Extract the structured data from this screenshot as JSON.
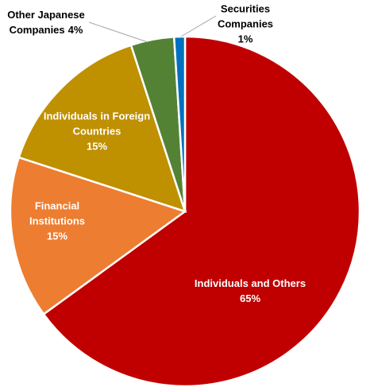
{
  "chart_data": {
    "type": "pie",
    "categories": [
      "Individuals and Others",
      "Financial Institutions",
      "Individuals in Foreign Countries",
      "Other Japanese Companies",
      "Securities Companies"
    ],
    "values": [
      65,
      15,
      15,
      4,
      1
    ],
    "value_labels": [
      "65%",
      "15%",
      "15%",
      "4%",
      "1%"
    ],
    "colors": [
      "#c00000",
      "#ed7d31",
      "#bf9000",
      "#548235",
      "#0070c0"
    ]
  }
}
